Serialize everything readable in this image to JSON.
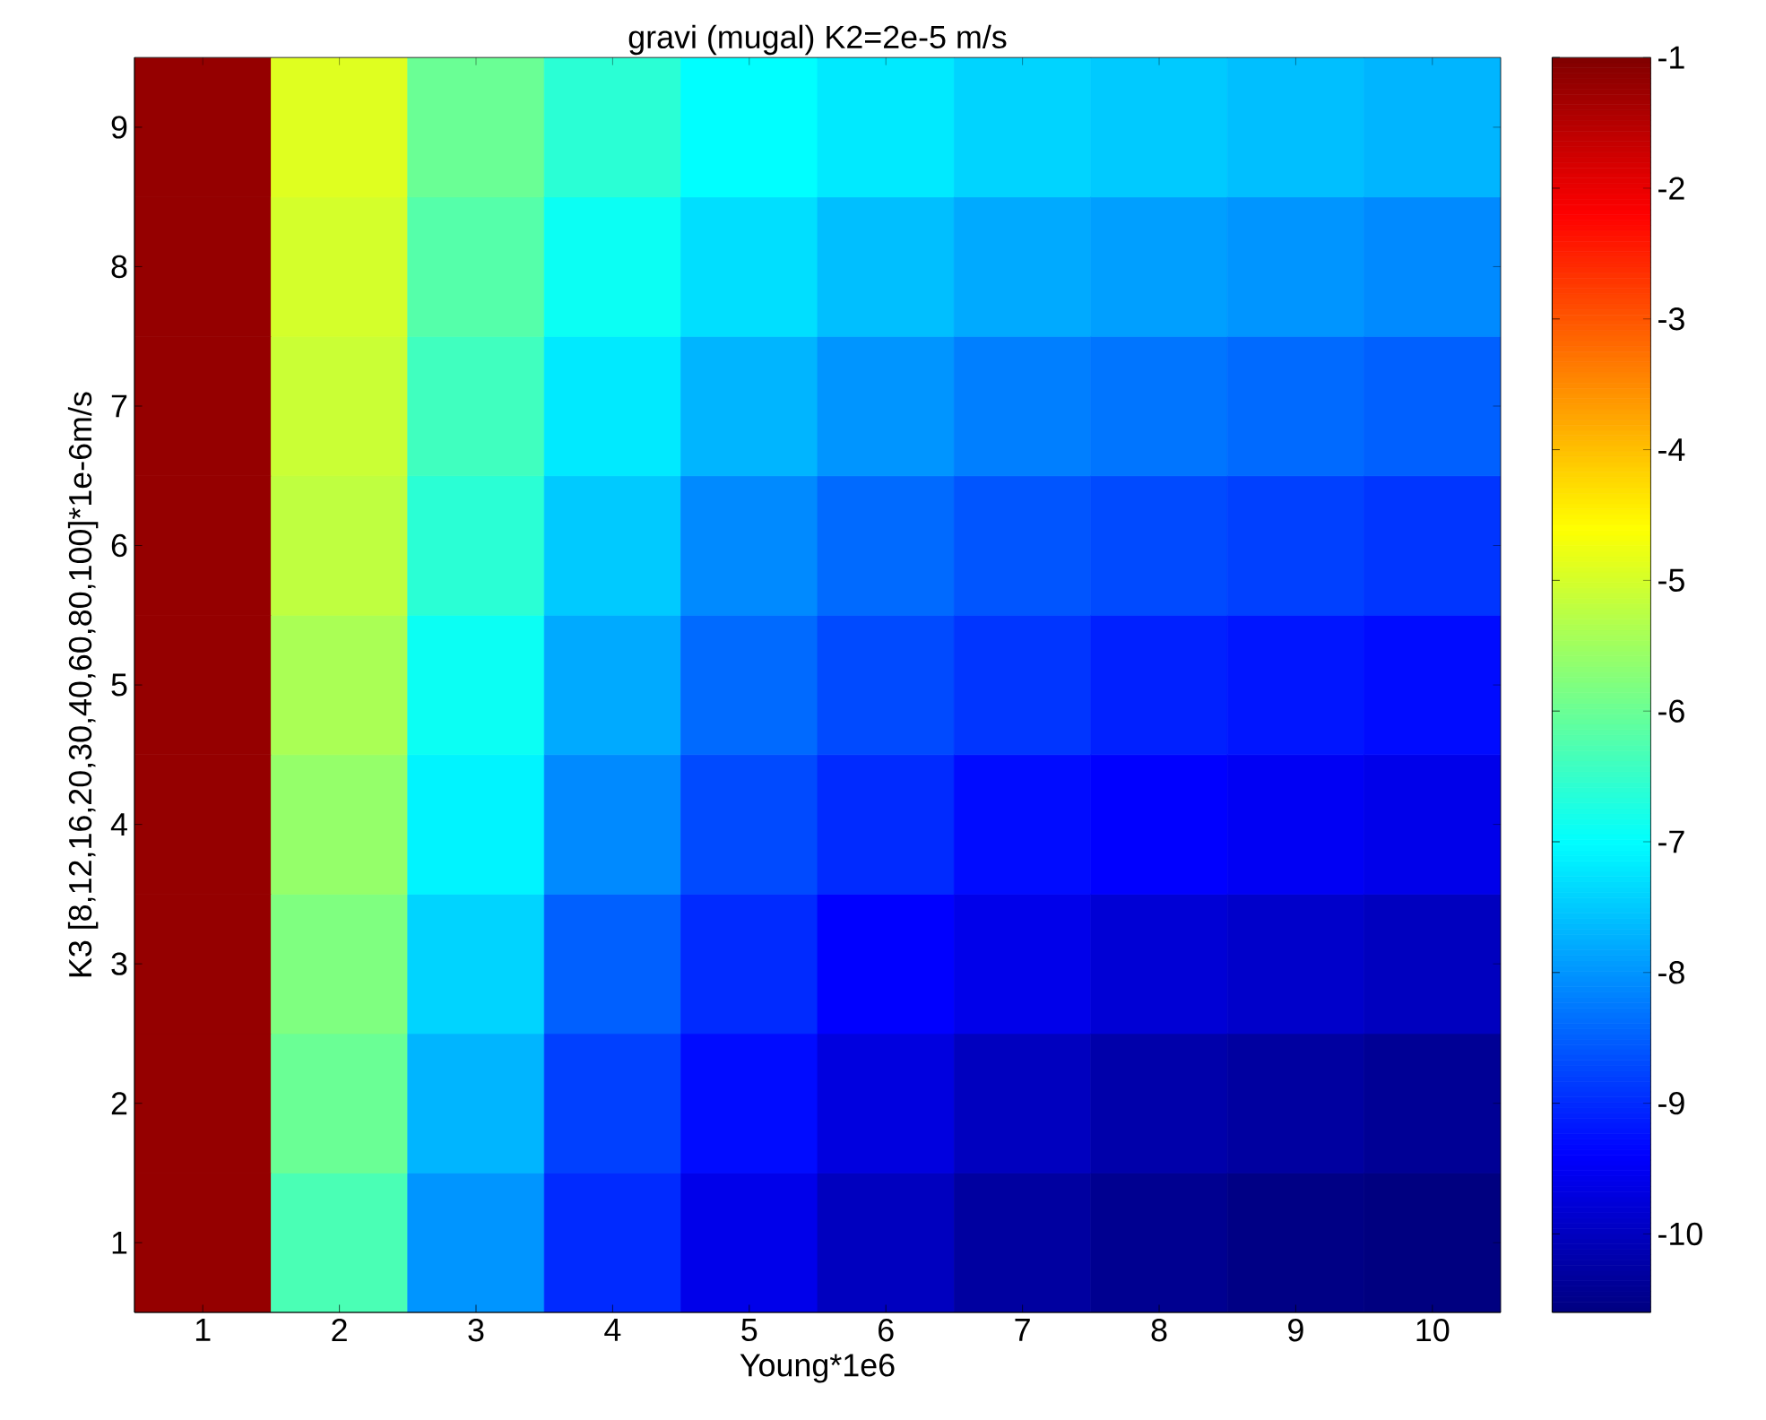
{
  "chart_data": {
    "type": "heatmap",
    "title": "gravi (mugal)  K2=2e-5 m/s",
    "xlabel": "Young*1e6",
    "ylabel": "K3 [8,12,16,20,30,40,60,80,100]*1e-6m/s",
    "categories": [
      "1",
      "2",
      "3",
      "4",
      "5",
      "6",
      "7",
      "8",
      "9",
      "10"
    ],
    "y_categories": [
      "9",
      "8",
      "7",
      "6",
      "5",
      "4",
      "3",
      "2",
      "1"
    ],
    "cells": [
      [
        -1.2,
        -4.9,
        -6.0,
        -6.6,
        -7.0,
        -7.2,
        -7.4,
        -7.5,
        -7.6,
        -7.7
      ],
      [
        -1.2,
        -5.0,
        -6.2,
        -6.9,
        -7.3,
        -7.6,
        -7.8,
        -7.9,
        -8.0,
        -8.1
      ],
      [
        -1.2,
        -5.1,
        -6.4,
        -7.2,
        -7.7,
        -8.0,
        -8.2,
        -8.3,
        -8.4,
        -8.5
      ],
      [
        -1.2,
        -5.2,
        -6.6,
        -7.5,
        -8.1,
        -8.4,
        -8.6,
        -8.7,
        -8.8,
        -8.9
      ],
      [
        -1.2,
        -5.4,
        -6.9,
        -7.8,
        -8.4,
        -8.7,
        -8.9,
        -9.1,
        -9.2,
        -9.3
      ],
      [
        -1.2,
        -5.6,
        -7.1,
        -8.1,
        -8.7,
        -9.0,
        -9.3,
        -9.4,
        -9.5,
        -9.6
      ],
      [
        -1.2,
        -5.8,
        -7.4,
        -8.5,
        -9.0,
        -9.4,
        -9.6,
        -9.8,
        -9.9,
        -10.0
      ],
      [
        -1.2,
        -6.0,
        -7.7,
        -8.8,
        -9.3,
        -9.7,
        -10.0,
        -10.2,
        -10.3,
        -10.4
      ],
      [
        -1.2,
        -6.3,
        -8.0,
        -9.0,
        -9.6,
        -10.0,
        -10.3,
        -10.45,
        -10.55,
        -10.6
      ]
    ],
    "clim": [
      -10.6,
      -1
    ],
    "cticks": [
      -1,
      -2,
      -3,
      -4,
      -5,
      -6,
      -7,
      -8,
      -9,
      -10
    ]
  }
}
